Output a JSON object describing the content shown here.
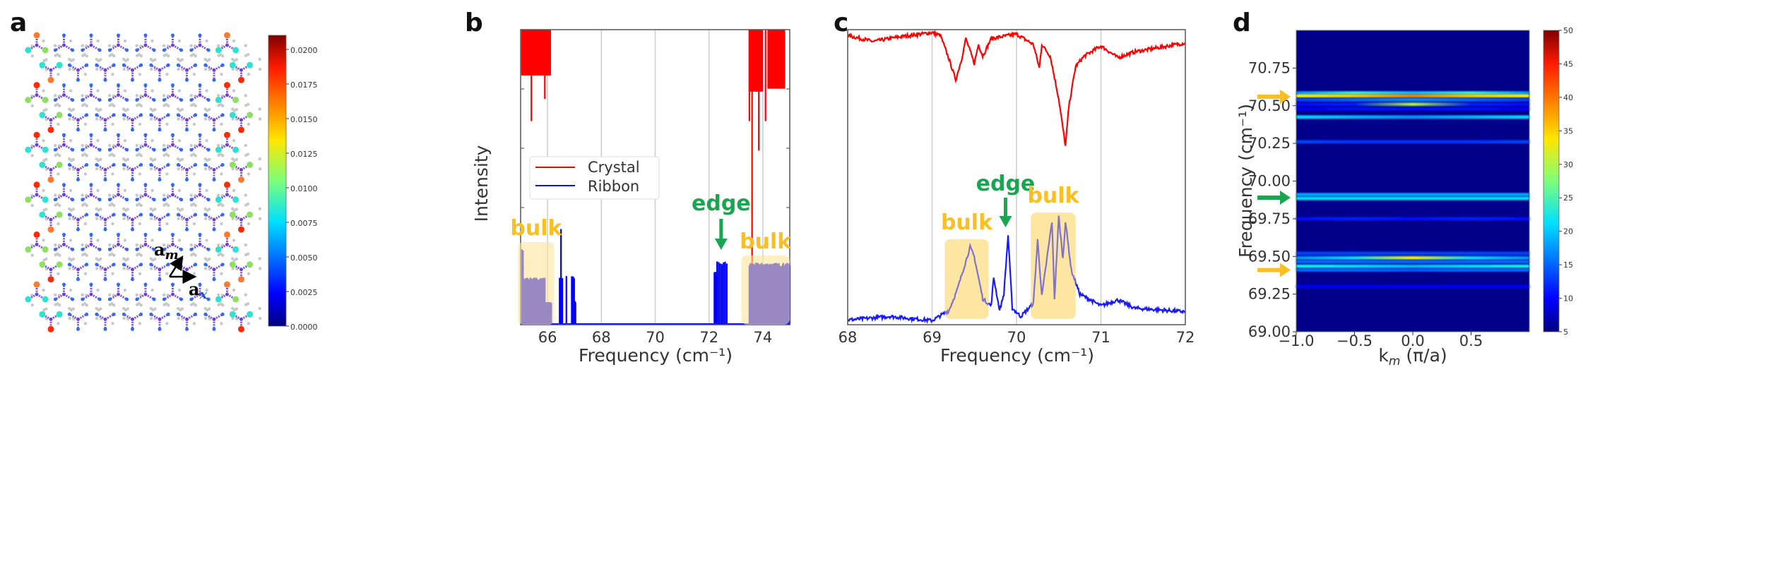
{
  "colors": {
    "crystal": "#ff0000",
    "ribbon": "#0000ff",
    "bulk": "#fbbf24",
    "edge": "#1aa651",
    "highlight": "#fde49a"
  },
  "chart_data": [
    {
      "panel": "a",
      "type": "heatmap",
      "title": "",
      "colorbar": {
        "ticks": [
          "0.0000",
          "0.0025",
          "0.0050",
          "0.0075",
          "0.0100",
          "0.0125",
          "0.0150",
          "0.0175",
          "0.0200"
        ],
        "range": [
          0,
          0.021
        ]
      },
      "vectors": {
        "am": {
          "base": "a",
          "sub": "m"
        },
        "ax": {
          "base": "a",
          "sub": "x"
        }
      }
    },
    {
      "panel": "b",
      "type": "bar",
      "xlabel": "Frequency (cm⁻¹)",
      "ylabel": "Intensity",
      "xlim": [
        65,
        75
      ],
      "ylim": [
        0,
        1
      ],
      "xticks": [
        "66",
        "68",
        "70",
        "72",
        "74"
      ],
      "grid": true,
      "legend": {
        "placement": "center-left",
        "entries": [
          {
            "label": "Crystal",
            "color": "#ff0000"
          },
          {
            "label": "Ribbon",
            "color": "#0000ff"
          }
        ]
      },
      "crystal_groups": [
        {
          "from": 65.05,
          "to": 66.1,
          "step": 0.03,
          "value": 0.845
        },
        {
          "from": 65.4,
          "to": 65.4,
          "step": 1,
          "value": 0.69
        },
        {
          "from": 65.9,
          "to": 65.9,
          "step": 1,
          "value": 0.765
        },
        {
          "from": 73.5,
          "to": 74.0,
          "step": 0.03,
          "value": 0.79
        },
        {
          "from": 73.5,
          "to": 73.5,
          "step": 1,
          "value": 0.69
        },
        {
          "from": 73.85,
          "to": 73.85,
          "step": 1,
          "value": 0.59
        },
        {
          "from": 73.6,
          "to": 73.6,
          "step": 1,
          "value": 0.1
        },
        {
          "from": 74.1,
          "to": 74.1,
          "step": 1,
          "value": 0.69
        },
        {
          "from": 74.2,
          "to": 74.8,
          "step": 0.03,
          "value": 0.8
        }
      ],
      "ribbon_groups": [
        {
          "from": 65.05,
          "to": 65.1,
          "step": 0.02,
          "value": 0.256
        },
        {
          "from": 65.1,
          "to": 65.9,
          "step": 0.02,
          "value": 0.16
        },
        {
          "from": 65.9,
          "to": 66.15,
          "step": 0.02,
          "value": 0.077
        },
        {
          "from": 66.5,
          "to": 66.5,
          "step": 1,
          "value": 0.34
        },
        {
          "from": 66.45,
          "to": 66.55,
          "step": 0.05,
          "value": 0.167
        },
        {
          "from": 66.7,
          "to": 66.7,
          "step": 1,
          "value": 0.167
        },
        {
          "from": 66.9,
          "to": 67.0,
          "step": 0.03,
          "value": 0.167
        },
        {
          "from": 67.0,
          "to": 67.05,
          "step": 0.02,
          "value": 0.08
        },
        {
          "from": 72.2,
          "to": 72.3,
          "step": 0.02,
          "value": 0.18
        },
        {
          "from": 72.3,
          "to": 72.7,
          "step": 0.06,
          "value": 0.215
        },
        {
          "from": 73.5,
          "to": 75.0,
          "step": 0.02,
          "value": 0.21
        }
      ],
      "annotations": [
        {
          "text": "bulk",
          "kind": "bulk",
          "box": {
            "f": [
              64.9,
              66.25
            ],
            "top": 0.28
          }
        },
        {
          "text": "edge",
          "kind": "edge",
          "arrow_at": 72.45
        },
        {
          "text": "bulk",
          "kind": "bulk",
          "box": {
            "f": [
              73.2,
              75.0
            ],
            "top": 0.235
          }
        }
      ]
    },
    {
      "panel": "c",
      "type": "line",
      "xlabel": "Frequency (cm⁻¹)",
      "ylabel": "",
      "xlim": [
        68,
        72
      ],
      "ylim": [
        0,
        1
      ],
      "xticks": [
        "68",
        "69",
        "70",
        "71",
        "72"
      ],
      "grid": true,
      "series": [
        {
          "name": "Crystal",
          "color": "#ff0000",
          "points": [
            [
              68,
              0.98
            ],
            [
              68.3,
              0.96
            ],
            [
              68.6,
              0.975
            ],
            [
              69.0,
              0.99
            ],
            [
              69.1,
              0.98
            ],
            [
              69.2,
              0.9
            ],
            [
              69.28,
              0.83
            ],
            [
              69.35,
              0.9
            ],
            [
              69.4,
              0.97
            ],
            [
              69.5,
              0.885
            ],
            [
              69.55,
              0.95
            ],
            [
              69.6,
              0.91
            ],
            [
              69.7,
              0.97
            ],
            [
              70.0,
              0.985
            ],
            [
              70.2,
              0.95
            ],
            [
              70.27,
              0.87
            ],
            [
              70.3,
              0.95
            ],
            [
              70.4,
              0.91
            ],
            [
              70.5,
              0.765
            ],
            [
              70.58,
              0.605
            ],
            [
              70.62,
              0.74
            ],
            [
              70.7,
              0.875
            ],
            [
              70.8,
              0.91
            ],
            [
              71.0,
              0.945
            ],
            [
              71.2,
              0.905
            ],
            [
              71.4,
              0.925
            ],
            [
              72.0,
              0.955
            ]
          ]
        },
        {
          "name": "Ribbon",
          "color": "#0000ff",
          "points": [
            [
              68,
              0.016
            ],
            [
              68.5,
              0.028
            ],
            [
              69.0,
              0.014
            ],
            [
              69.2,
              0.048
            ],
            [
              69.3,
              0.12
            ],
            [
              69.45,
              0.263
            ],
            [
              69.5,
              0.23
            ],
            [
              69.6,
              0.088
            ],
            [
              69.7,
              0.064
            ],
            [
              69.73,
              0.16
            ],
            [
              69.8,
              0.048
            ],
            [
              69.85,
              0.104
            ],
            [
              69.9,
              0.303
            ],
            [
              69.95,
              0.056
            ],
            [
              70.05,
              0.028
            ],
            [
              70.2,
              0.072
            ],
            [
              70.25,
              0.287
            ],
            [
              70.3,
              0.096
            ],
            [
              70.42,
              0.35
            ],
            [
              70.45,
              0.088
            ],
            [
              70.5,
              0.367
            ],
            [
              70.55,
              0.223
            ],
            [
              70.58,
              0.35
            ],
            [
              70.65,
              0.183
            ],
            [
              70.75,
              0.104
            ],
            [
              71.0,
              0.064
            ],
            [
              71.2,
              0.084
            ],
            [
              71.4,
              0.056
            ],
            [
              72.0,
              0.044
            ]
          ]
        }
      ],
      "annotations": [
        {
          "text": "bulk",
          "kind": "bulk",
          "box": {
            "f": [
              69.15,
              69.67
            ],
            "top": 0.29
          }
        },
        {
          "text": "edge",
          "kind": "edge",
          "arrow_at": 69.87
        },
        {
          "text": "bulk",
          "kind": "bulk",
          "box": {
            "f": [
              70.17,
              70.7
            ],
            "top": 0.38
          }
        }
      ]
    },
    {
      "panel": "d",
      "type": "heatmap",
      "xlabel": {
        "main": "k",
        "sub": "m",
        "rest": " (π/a)"
      },
      "ylabel": "Frequency (cm⁻¹)",
      "xlim": [
        -1,
        1
      ],
      "ylim": [
        69,
        71
      ],
      "xticks": [
        {
          "v": -1,
          "t": "−1.0"
        },
        {
          "v": -0.5,
          "t": "−0.5"
        },
        {
          "v": 0,
          "t": "0.0"
        },
        {
          "v": 0.5,
          "t": "0.5"
        }
      ],
      "yticks": [
        {
          "v": 69.0,
          "t": "69.00"
        },
        {
          "v": 69.25,
          "t": "69.25"
        },
        {
          "v": 69.5,
          "t": "69.50"
        },
        {
          "v": 69.75,
          "t": "69.75"
        },
        {
          "v": 70.0,
          "t": "70.00"
        },
        {
          "v": 70.25,
          "t": "70.25"
        },
        {
          "v": 70.5,
          "t": "70.50"
        },
        {
          "v": 70.75,
          "t": "70.75"
        }
      ],
      "colorbar": {
        "range": [
          5,
          50
        ],
        "ticks": [
          "5",
          "10",
          "15",
          "20",
          "25",
          "30",
          "35",
          "40",
          "45",
          "50"
        ]
      },
      "bands_k": [
        -1,
        -0.5,
        0,
        0.5,
        1
      ],
      "bands": [
        {
          "f": 70.585,
          "i": [
            16,
            24,
            18,
            24,
            16
          ]
        },
        {
          "f": 70.565,
          "i": [
            34,
            36,
            40,
            36,
            34
          ]
        },
        {
          "f": 70.54,
          "i": [
            12,
            14,
            16,
            14,
            12
          ]
        },
        {
          "f": 70.51,
          "i": [
            9,
            10,
            30,
            10,
            9
          ]
        },
        {
          "f": 70.48,
          "i": [
            8,
            9,
            9,
            9,
            8
          ]
        },
        {
          "f": 70.425,
          "i": [
            20,
            18,
            16,
            18,
            20
          ]
        },
        {
          "f": 70.26,
          "i": [
            12,
            11,
            11,
            11,
            12
          ]
        },
        {
          "f": 69.91,
          "i": [
            17,
            17,
            17,
            17,
            17
          ]
        },
        {
          "f": 69.885,
          "i": [
            20,
            20,
            20,
            20,
            20
          ]
        },
        {
          "f": 69.75,
          "i": [
            9,
            10,
            9,
            10,
            9
          ]
        },
        {
          "f": 69.52,
          "i": [
            12,
            12,
            12,
            12,
            12
          ]
        },
        {
          "f": 69.49,
          "i": [
            16,
            20,
            34,
            20,
            16
          ]
        },
        {
          "f": 69.465,
          "i": [
            14,
            14,
            14,
            14,
            14
          ]
        },
        {
          "f": 69.435,
          "i": [
            22,
            20,
            18,
            20,
            22
          ]
        },
        {
          "f": 69.41,
          "i": [
            14,
            14,
            13,
            14,
            14
          ]
        },
        {
          "f": 69.3,
          "i": [
            8,
            8,
            8,
            8,
            8
          ]
        }
      ],
      "arrows": [
        {
          "f": 70.56,
          "kind": "bulk"
        },
        {
          "f": 69.89,
          "kind": "edge"
        },
        {
          "f": 69.41,
          "kind": "bulk"
        }
      ]
    }
  ],
  "panels": {
    "a": "a",
    "b": "b",
    "c": "c",
    "d": "d"
  }
}
